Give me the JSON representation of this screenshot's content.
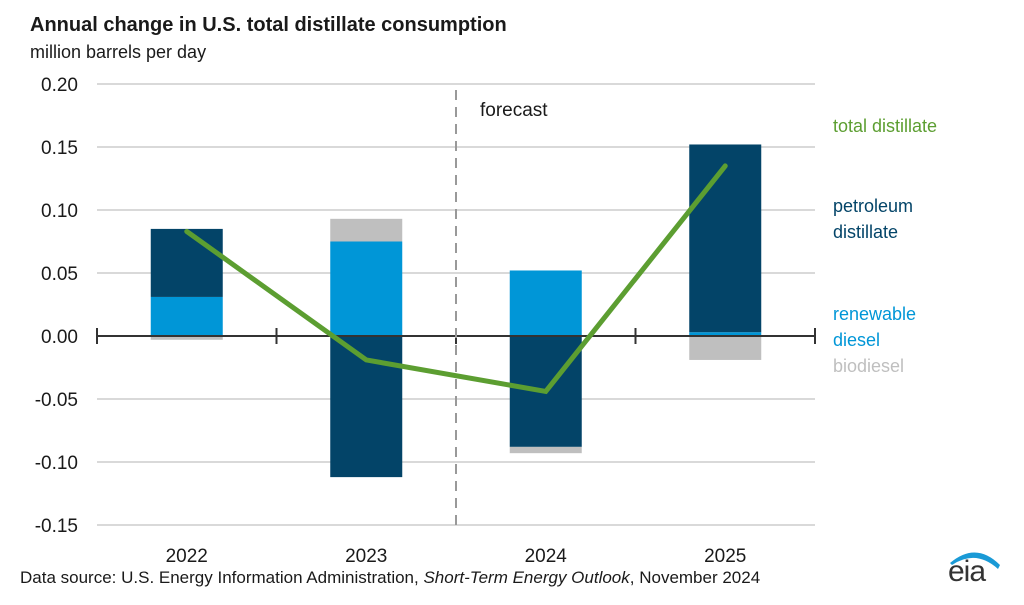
{
  "header": {
    "title": "Annual change in U.S. total distillate consumption",
    "subtitle": "million barrels per day"
  },
  "footer": {
    "source_prefix": "Data source: U.S. Energy Information Administration, ",
    "source_italic": "Short-Term Energy Outlook",
    "source_suffix": ", November 2024",
    "logo_text": "eia"
  },
  "colors": {
    "petroleum": "#034468",
    "renewable": "#0096d7",
    "biodiesel": "#bfbfbf",
    "total": "#5c9e31",
    "grid": "#d9d9d9",
    "axis": "#333333"
  },
  "chart_data": {
    "type": "bar",
    "stacked": true,
    "title": "Annual change in U.S. total distillate consumption",
    "ylabel": "million barrels per day",
    "xlabel": "",
    "categories": [
      "2022",
      "2023",
      "2024",
      "2025"
    ],
    "ylim": [
      -0.15,
      0.2
    ],
    "yticks": [
      0.2,
      0.15,
      0.1,
      0.05,
      0.0,
      -0.05,
      -0.1,
      -0.15
    ],
    "ytick_labels": [
      "0.20",
      "0.15",
      "0.10",
      "0.05",
      "0.00",
      "-0.05",
      "-0.10",
      "-0.15"
    ],
    "grid": true,
    "series": [
      {
        "name": "renewable diesel",
        "kind": "bar",
        "values": [
          0.031,
          0.075,
          0.052,
          0.003
        ]
      },
      {
        "name": "petroleum distillate",
        "kind": "bar",
        "values": [
          0.054,
          -0.112,
          -0.088,
          0.149
        ]
      },
      {
        "name": "biodiesel",
        "kind": "bar",
        "values": [
          -0.003,
          0.018,
          -0.005,
          -0.019
        ]
      },
      {
        "name": "total distillate",
        "kind": "line",
        "values": [
          0.083,
          -0.019,
          -0.044,
          0.135
        ]
      }
    ],
    "legend": [
      {
        "label_lines": [
          "total distillate"
        ],
        "series": "total distillate"
      },
      {
        "label_lines": [
          "petroleum",
          "distillate"
        ],
        "series": "petroleum distillate"
      },
      {
        "label_lines": [
          "renewable",
          "diesel"
        ],
        "series": "renewable diesel"
      },
      {
        "label_lines": [
          "biodiesel"
        ],
        "series": "biodiesel"
      }
    ],
    "legend_position": "right",
    "annotations": [
      {
        "text": "forecast",
        "note": "dashed vertical divider between 2023 and 2024"
      }
    ]
  }
}
